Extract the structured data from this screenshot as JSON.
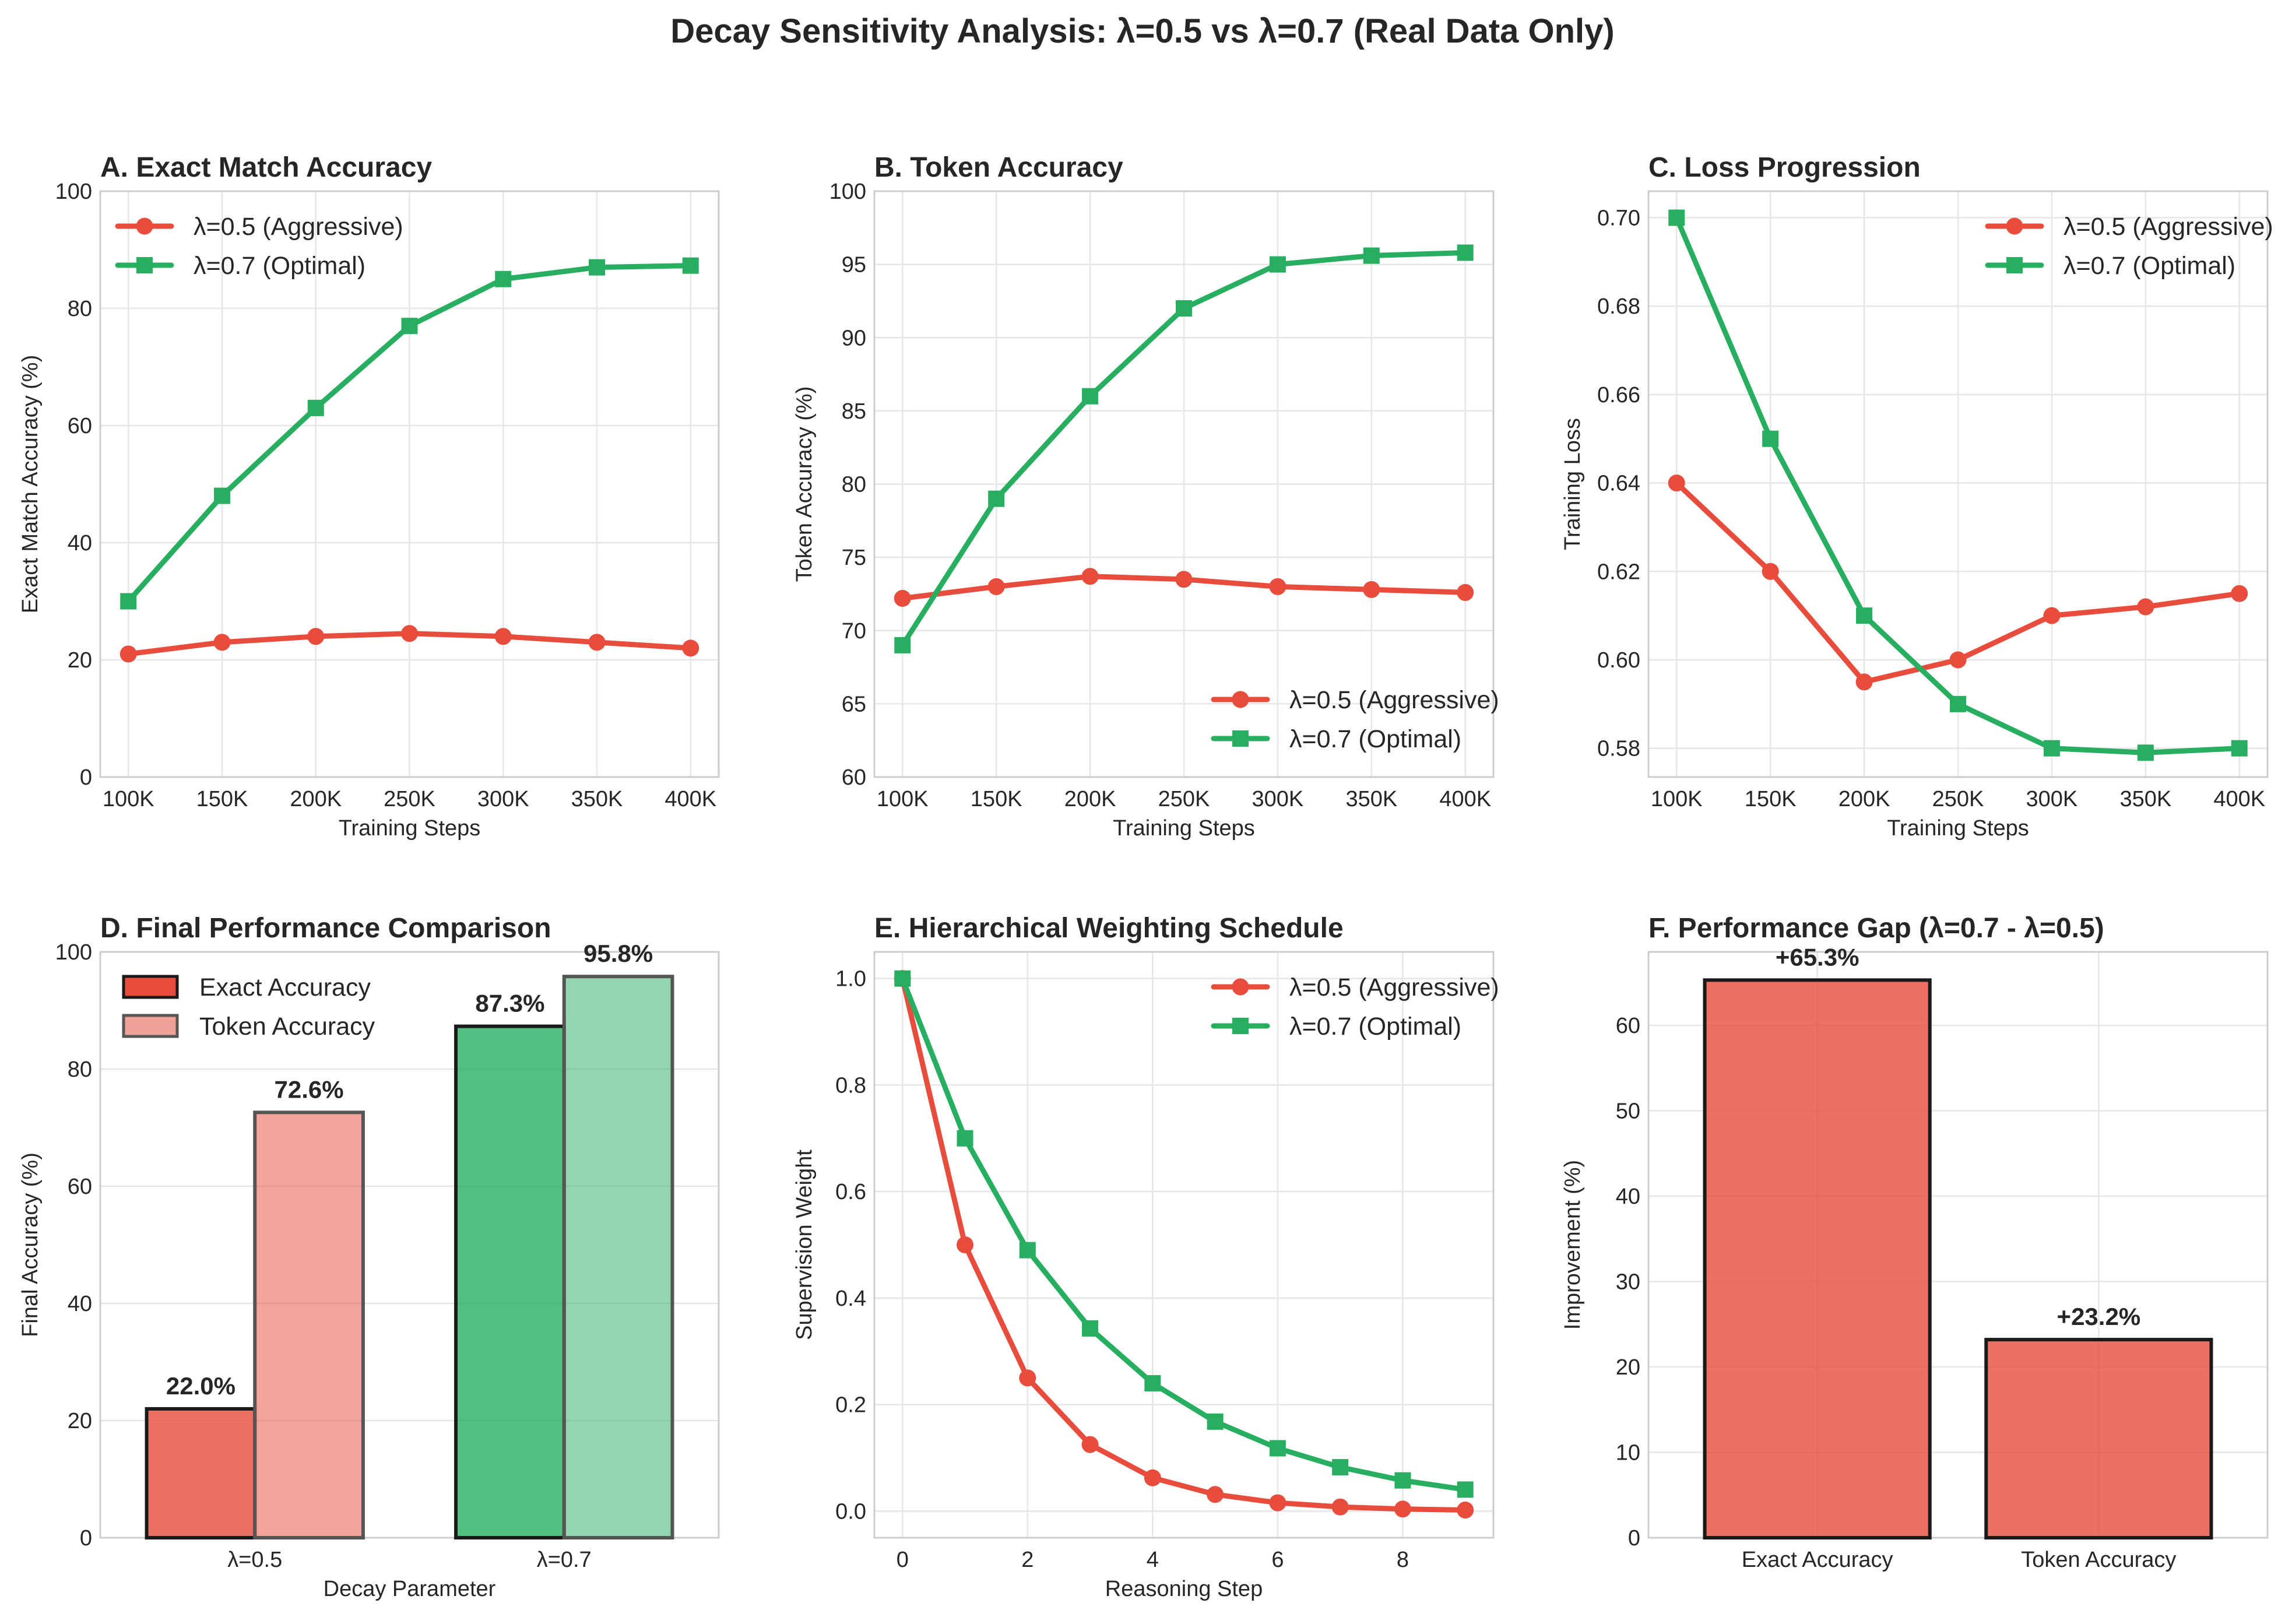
{
  "title": "Decay Sensitivity Analysis: λ=0.5 vs λ=0.7 (Real Data Only)",
  "colors": {
    "aggressive": "#e74c3c",
    "optimal": "#27ae60",
    "axis_frame": "#cccccc",
    "grid": "#e6e6e6"
  },
  "chart_data": [
    {
      "id": "A",
      "type": "line",
      "title": "A. Exact Match Accuracy",
      "xlabel": "Training Steps",
      "ylabel": "Exact Match Accuracy (%)",
      "categories": [
        "100K",
        "150K",
        "200K",
        "250K",
        "300K",
        "350K",
        "400K"
      ],
      "ylim": [
        0,
        100
      ],
      "yticks": [
        0,
        20,
        40,
        60,
        80,
        100
      ],
      "legend_position": "upper-left",
      "series": [
        {
          "name": "λ=0.5 (Aggressive)",
          "marker": "circle",
          "color": "#e74c3c",
          "values": [
            21,
            23,
            24,
            24.5,
            24,
            23,
            22
          ]
        },
        {
          "name": "λ=0.7 (Optimal)",
          "marker": "square",
          "color": "#27ae60",
          "values": [
            30,
            48,
            63,
            77,
            85,
            87,
            87.3
          ]
        }
      ]
    },
    {
      "id": "B",
      "type": "line",
      "title": "B. Token Accuracy",
      "xlabel": "Training Steps",
      "ylabel": "Token Accuracy (%)",
      "categories": [
        "100K",
        "150K",
        "200K",
        "250K",
        "300K",
        "350K",
        "400K"
      ],
      "ylim": [
        60,
        100
      ],
      "yticks": [
        60,
        65,
        70,
        75,
        80,
        85,
        90,
        95,
        100
      ],
      "legend_position": "lower-right",
      "series": [
        {
          "name": "λ=0.5 (Aggressive)",
          "marker": "circle",
          "color": "#e74c3c",
          "values": [
            72.2,
            73,
            73.7,
            73.5,
            73,
            72.8,
            72.6
          ]
        },
        {
          "name": "λ=0.7 (Optimal)",
          "marker": "square",
          "color": "#27ae60",
          "values": [
            69,
            79,
            86,
            92,
            95,
            95.6,
            95.8
          ]
        }
      ]
    },
    {
      "id": "C",
      "type": "line",
      "title": "C. Loss Progression",
      "xlabel": "Training Steps",
      "ylabel": "Training Loss",
      "categories": [
        "100K",
        "150K",
        "200K",
        "250K",
        "300K",
        "350K",
        "400K"
      ],
      "ylim": [
        0.5735,
        0.706
      ],
      "yticks": [
        0.58,
        0.6,
        0.62,
        0.64,
        0.66,
        0.68,
        0.7
      ],
      "ytick_labels": [
        "0.58",
        "0.60",
        "0.62",
        "0.64",
        "0.66",
        "0.68",
        "0.70"
      ],
      "legend_position": "upper-right",
      "series": [
        {
          "name": "λ=0.5 (Aggressive)",
          "marker": "circle",
          "color": "#e74c3c",
          "values": [
            0.64,
            0.62,
            0.595,
            0.6,
            0.61,
            0.612,
            0.615
          ]
        },
        {
          "name": "λ=0.7 (Optimal)",
          "marker": "square",
          "color": "#27ae60",
          "values": [
            0.7,
            0.65,
            0.61,
            0.59,
            0.58,
            0.579,
            0.58
          ]
        }
      ]
    },
    {
      "id": "D",
      "type": "bar",
      "title": "D. Final Performance Comparison",
      "xlabel": "Decay Parameter",
      "ylabel": "Final Accuracy (%)",
      "categories": [
        "λ=0.5",
        "λ=0.7"
      ],
      "ylim": [
        0,
        100
      ],
      "yticks": [
        0,
        20,
        40,
        60,
        80,
        100
      ],
      "legend_position": "upper-left",
      "series": [
        {
          "name": "Exact Accuracy",
          "values": [
            22.0,
            87.3
          ],
          "labels": [
            "22.0%",
            "87.3%"
          ],
          "colors": [
            "#e74c3c",
            "#27ae60"
          ],
          "opacity": 0.8,
          "edge": "#1a1a1a",
          "legend_fill": "#e74c3c"
        },
        {
          "name": "Token Accuracy",
          "values": [
            72.6,
            95.8
          ],
          "labels": [
            "72.6%",
            "95.8%"
          ],
          "colors": [
            "#e74c3c",
            "#27ae60"
          ],
          "opacity": 0.5,
          "edge": "#555555",
          "legend_fill": "#f0a096"
        }
      ]
    },
    {
      "id": "E",
      "type": "line",
      "title": "E. Hierarchical Weighting Schedule",
      "xlabel": "Reasoning Step",
      "ylabel": "Supervision Weight",
      "x": [
        0,
        1,
        2,
        3,
        4,
        5,
        6,
        7,
        8,
        9
      ],
      "xlim": [
        -0.45,
        9.45
      ],
      "xticks": [
        0,
        2,
        4,
        6,
        8
      ],
      "ylim": [
        -0.05,
        1.05
      ],
      "yticks": [
        0,
        0.2,
        0.4,
        0.6,
        0.8,
        1
      ],
      "ytick_labels": [
        "0.0",
        "0.2",
        "0.4",
        "0.6",
        "0.8",
        "1.0"
      ],
      "legend_position": "upper-right",
      "series": [
        {
          "name": "λ=0.5 (Aggressive)",
          "marker": "circle",
          "color": "#e74c3c",
          "values": [
            1,
            0.5,
            0.25,
            0.125,
            0.0625,
            0.0313,
            0.0156,
            0.0078,
            0.0039,
            0.002
          ]
        },
        {
          "name": "λ=0.7 (Optimal)",
          "marker": "square",
          "color": "#27ae60",
          "values": [
            1,
            0.7,
            0.49,
            0.343,
            0.24,
            0.168,
            0.118,
            0.0824,
            0.0576,
            0.0404
          ]
        }
      ]
    },
    {
      "id": "F",
      "type": "bar",
      "title": "F. Performance Gap (λ=0.7 - λ=0.5)",
      "xlabel": "",
      "ylabel": "Improvement (%)",
      "categories": [
        "Exact Accuracy",
        "Token Accuracy"
      ],
      "ylim": [
        0,
        68.6
      ],
      "yticks": [
        0,
        10,
        20,
        30,
        40,
        50,
        60
      ],
      "values": [
        65.3,
        23.2
      ],
      "labels": [
        "+65.3%",
        "+23.2%"
      ],
      "color": "#e74c3c"
    }
  ]
}
